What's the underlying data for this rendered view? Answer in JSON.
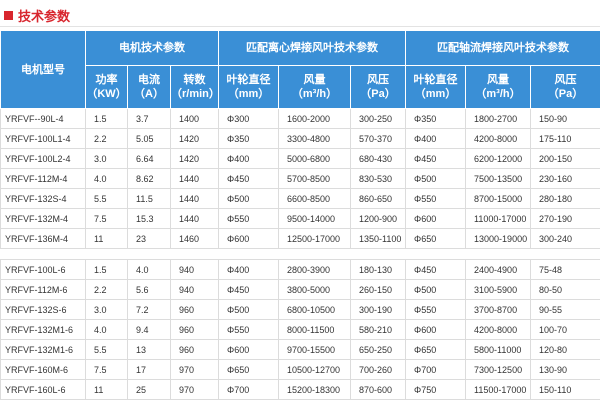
{
  "header": {
    "title": "技术参数"
  },
  "table": {
    "model_header": "电机型号",
    "groups_header": [
      "电机技术参数",
      "匹配离心焊接风叶技术参数",
      "匹配轴流焊接风叶技术参数"
    ],
    "columns": [
      {
        "name": "功率",
        "unit": "（KW）"
      },
      {
        "name": "电流",
        "unit": "（A）"
      },
      {
        "name": "转数",
        "unit": "（r/min）"
      },
      {
        "name": "叶轮直径",
        "unit": "（mm）"
      },
      {
        "name": "风量",
        "unit": "（m³/h）"
      },
      {
        "name": "风压",
        "unit": "（Pa）"
      },
      {
        "name": "叶轮直径",
        "unit": "（mm）"
      },
      {
        "name": "风量",
        "unit": "（m³/h）"
      },
      {
        "name": "风压",
        "unit": "（Pa）"
      }
    ],
    "groups": [
      [
        [
          "YRFVF--90L-4",
          "1.5",
          "3.7",
          "1400",
          "Φ300",
          "1600-2000",
          "300-250",
          "Φ350",
          "1800-2700",
          "150-90"
        ],
        [
          "YRFVF-100L1-4",
          "2.2",
          "5.05",
          "1420",
          "Φ350",
          "3300-4800",
          "570-370",
          "Φ400",
          "4200-8000",
          "175-110"
        ],
        [
          "YRFVF-100L2-4",
          "3.0",
          "6.64",
          "1420",
          "Φ400",
          "5000-6800",
          "680-430",
          "Φ450",
          "6200-12000",
          "200-150"
        ],
        [
          "YRFVF-112M-4",
          "4.0",
          "8.62",
          "1440",
          "Φ450",
          "5700-8500",
          "830-530",
          "Φ500",
          "7500-13500",
          "230-160"
        ],
        [
          "YRFVF-132S-4",
          "5.5",
          "11.5",
          "1440",
          "Φ500",
          "6600-8500",
          "860-650",
          "Φ550",
          "8700-15000",
          "280-180"
        ],
        [
          "YRFVF-132M-4",
          "7.5",
          "15.3",
          "1440",
          "Φ550",
          "9500-14000",
          "1200-900",
          "Φ600",
          "11000-17000",
          "270-190"
        ],
        [
          "YRFVF-136M-4",
          "11",
          "23",
          "1460",
          "Φ600",
          "12500-17000",
          "1350-1100",
          "Φ650",
          "13000-19000",
          "300-240"
        ]
      ],
      [
        [
          "YRFVF-100L-6",
          "1.5",
          "4.0",
          "940",
          "Φ400",
          "2800-3900",
          "180-130",
          "Φ450",
          "2400-4900",
          "75-48"
        ],
        [
          "YRFVF-112M-6",
          "2.2",
          "5.6",
          "940",
          "Φ450",
          "3800-5000",
          "260-150",
          "Φ500",
          "3100-5900",
          "80-50"
        ],
        [
          "YRFVF-132S-6",
          "3.0",
          "7.2",
          "960",
          "Φ500",
          "6800-10500",
          "300-190",
          "Φ550",
          "3700-8700",
          "90-55"
        ],
        [
          "YRFVF-132M1-6",
          "4.0",
          "9.4",
          "960",
          "Φ550",
          "8000-11500",
          "580-210",
          "Φ600",
          "4200-8000",
          "100-70"
        ],
        [
          "YRFVF-132M1-6",
          "5.5",
          "13",
          "960",
          "Φ600",
          "9700-15500",
          "650-250",
          "Φ650",
          "5800-11000",
          "120-80"
        ],
        [
          "YRFVF-160M-6",
          "7.5",
          "17",
          "970",
          "Φ650",
          "10500-12700",
          "700-260",
          "Φ700",
          "7300-12500",
          "130-90"
        ],
        [
          "YRFVF-160L-6",
          "11",
          "25",
          "970",
          "Φ700",
          "15200-18300",
          "870-600",
          "Φ750",
          "11500-17000",
          "150-110"
        ]
      ]
    ]
  }
}
